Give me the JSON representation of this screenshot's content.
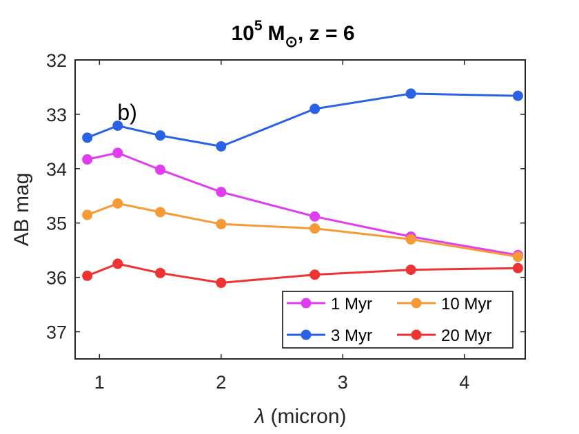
{
  "chart_data": {
    "type": "line",
    "title": {
      "base": "10",
      "exponent": "5",
      "unit": "M",
      "unit_sub": "⊙",
      "suffix": ", z = 6"
    },
    "xlabel_symbol": "λ",
    "xlabel_rest": " (micron)",
    "ylabel": "AB mag",
    "xlim": [
      0.8,
      4.5
    ],
    "ylim": [
      32,
      37.5
    ],
    "y_reversed": true,
    "xticks": [
      1,
      2,
      3,
      4
    ],
    "xtick_labels": [
      "1",
      "2",
      "3",
      "4"
    ],
    "yticks": [
      32,
      33,
      34,
      35,
      36,
      37
    ],
    "ytick_labels": [
      "32",
      "33",
      "34",
      "35",
      "36",
      "37"
    ],
    "annotation": {
      "text": "b)",
      "x": 1.25,
      "y": 32.95
    },
    "legend_position": "bottom-right",
    "x": [
      0.9,
      1.15,
      1.5,
      2.0,
      2.77,
      3.56,
      4.44
    ],
    "series": [
      {
        "name": "1 Myr",
        "color": "#e03cf0",
        "values": [
          33.83,
          33.71,
          34.02,
          34.43,
          34.88,
          35.25,
          35.59
        ]
      },
      {
        "name": "3 Myr",
        "color": "#2a62e6",
        "values": [
          33.43,
          33.21,
          33.39,
          33.59,
          32.9,
          32.62,
          32.66
        ]
      },
      {
        "name": "10 Myr",
        "color": "#f59a36",
        "values": [
          34.85,
          34.64,
          34.8,
          35.02,
          35.1,
          35.3,
          35.62
        ]
      },
      {
        "name": "20 Myr",
        "color": "#ef3232",
        "values": [
          35.97,
          35.75,
          35.92,
          36.1,
          35.95,
          35.86,
          35.83
        ]
      }
    ]
  }
}
